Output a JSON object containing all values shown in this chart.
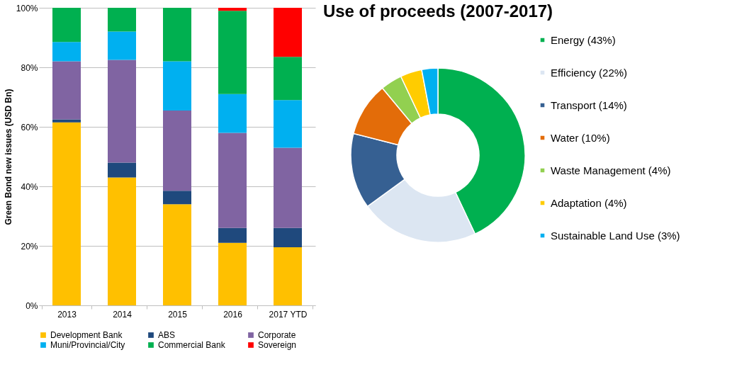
{
  "chart_data": [
    {
      "type": "bar",
      "stacked": true,
      "ylabel": "Green Bond new issues (USD Bn)",
      "categories": [
        "2013",
        "2014",
        "2015",
        "2016",
        "2017 YTD"
      ],
      "series": [
        {
          "name": "Development Bank",
          "color": "#ffc000",
          "values": [
            61.5,
            43,
            34,
            21,
            19.5
          ]
        },
        {
          "name": "ABS",
          "color": "#1f497d",
          "values": [
            1,
            5,
            4.5,
            5,
            6.5
          ]
        },
        {
          "name": "Corporate",
          "color": "#8064a2",
          "values": [
            19.5,
            34.5,
            27,
            32,
            27
          ]
        },
        {
          "name": "Muni/Provincial/City",
          "color": "#00b0f0",
          "values": [
            6.5,
            9.5,
            16.5,
            13,
            16
          ]
        },
        {
          "name": "Commercial Bank",
          "color": "#00b050",
          "values": [
            11.5,
            8,
            18,
            28,
            14.5
          ]
        },
        {
          "name": "Sovereign",
          "color": "#ff0000",
          "values": [
            0,
            0,
            0,
            1,
            16.5
          ]
        }
      ],
      "ylim": [
        0,
        100
      ],
      "yticks": [
        {
          "value": 0,
          "label": "0%"
        },
        {
          "value": 20,
          "label": "20%"
        },
        {
          "value": 40,
          "label": "40%"
        },
        {
          "value": 60,
          "label": "60%"
        },
        {
          "value": 80,
          "label": "80%"
        },
        {
          "value": 100,
          "label": "100%"
        }
      ],
      "grid": "y",
      "legend": "bottom"
    },
    {
      "type": "donut",
      "title": "Use of proceeds (2007-2017)",
      "categories": [
        "Energy (43%)",
        "Efficiency (22%)",
        "Transport (14%)",
        "Water (10%)",
        "Waste Management (4%)",
        "Adaptation (4%)",
        "Sustainable Land Use (3%)"
      ],
      "values": [
        43,
        22,
        14,
        10,
        4,
        4,
        3
      ],
      "colors": [
        "#00b050",
        "#dce6f2",
        "#366092",
        "#e36c09",
        "#92d050",
        "#ffcc00",
        "#00b0f0"
      ],
      "legend": "right"
    }
  ]
}
